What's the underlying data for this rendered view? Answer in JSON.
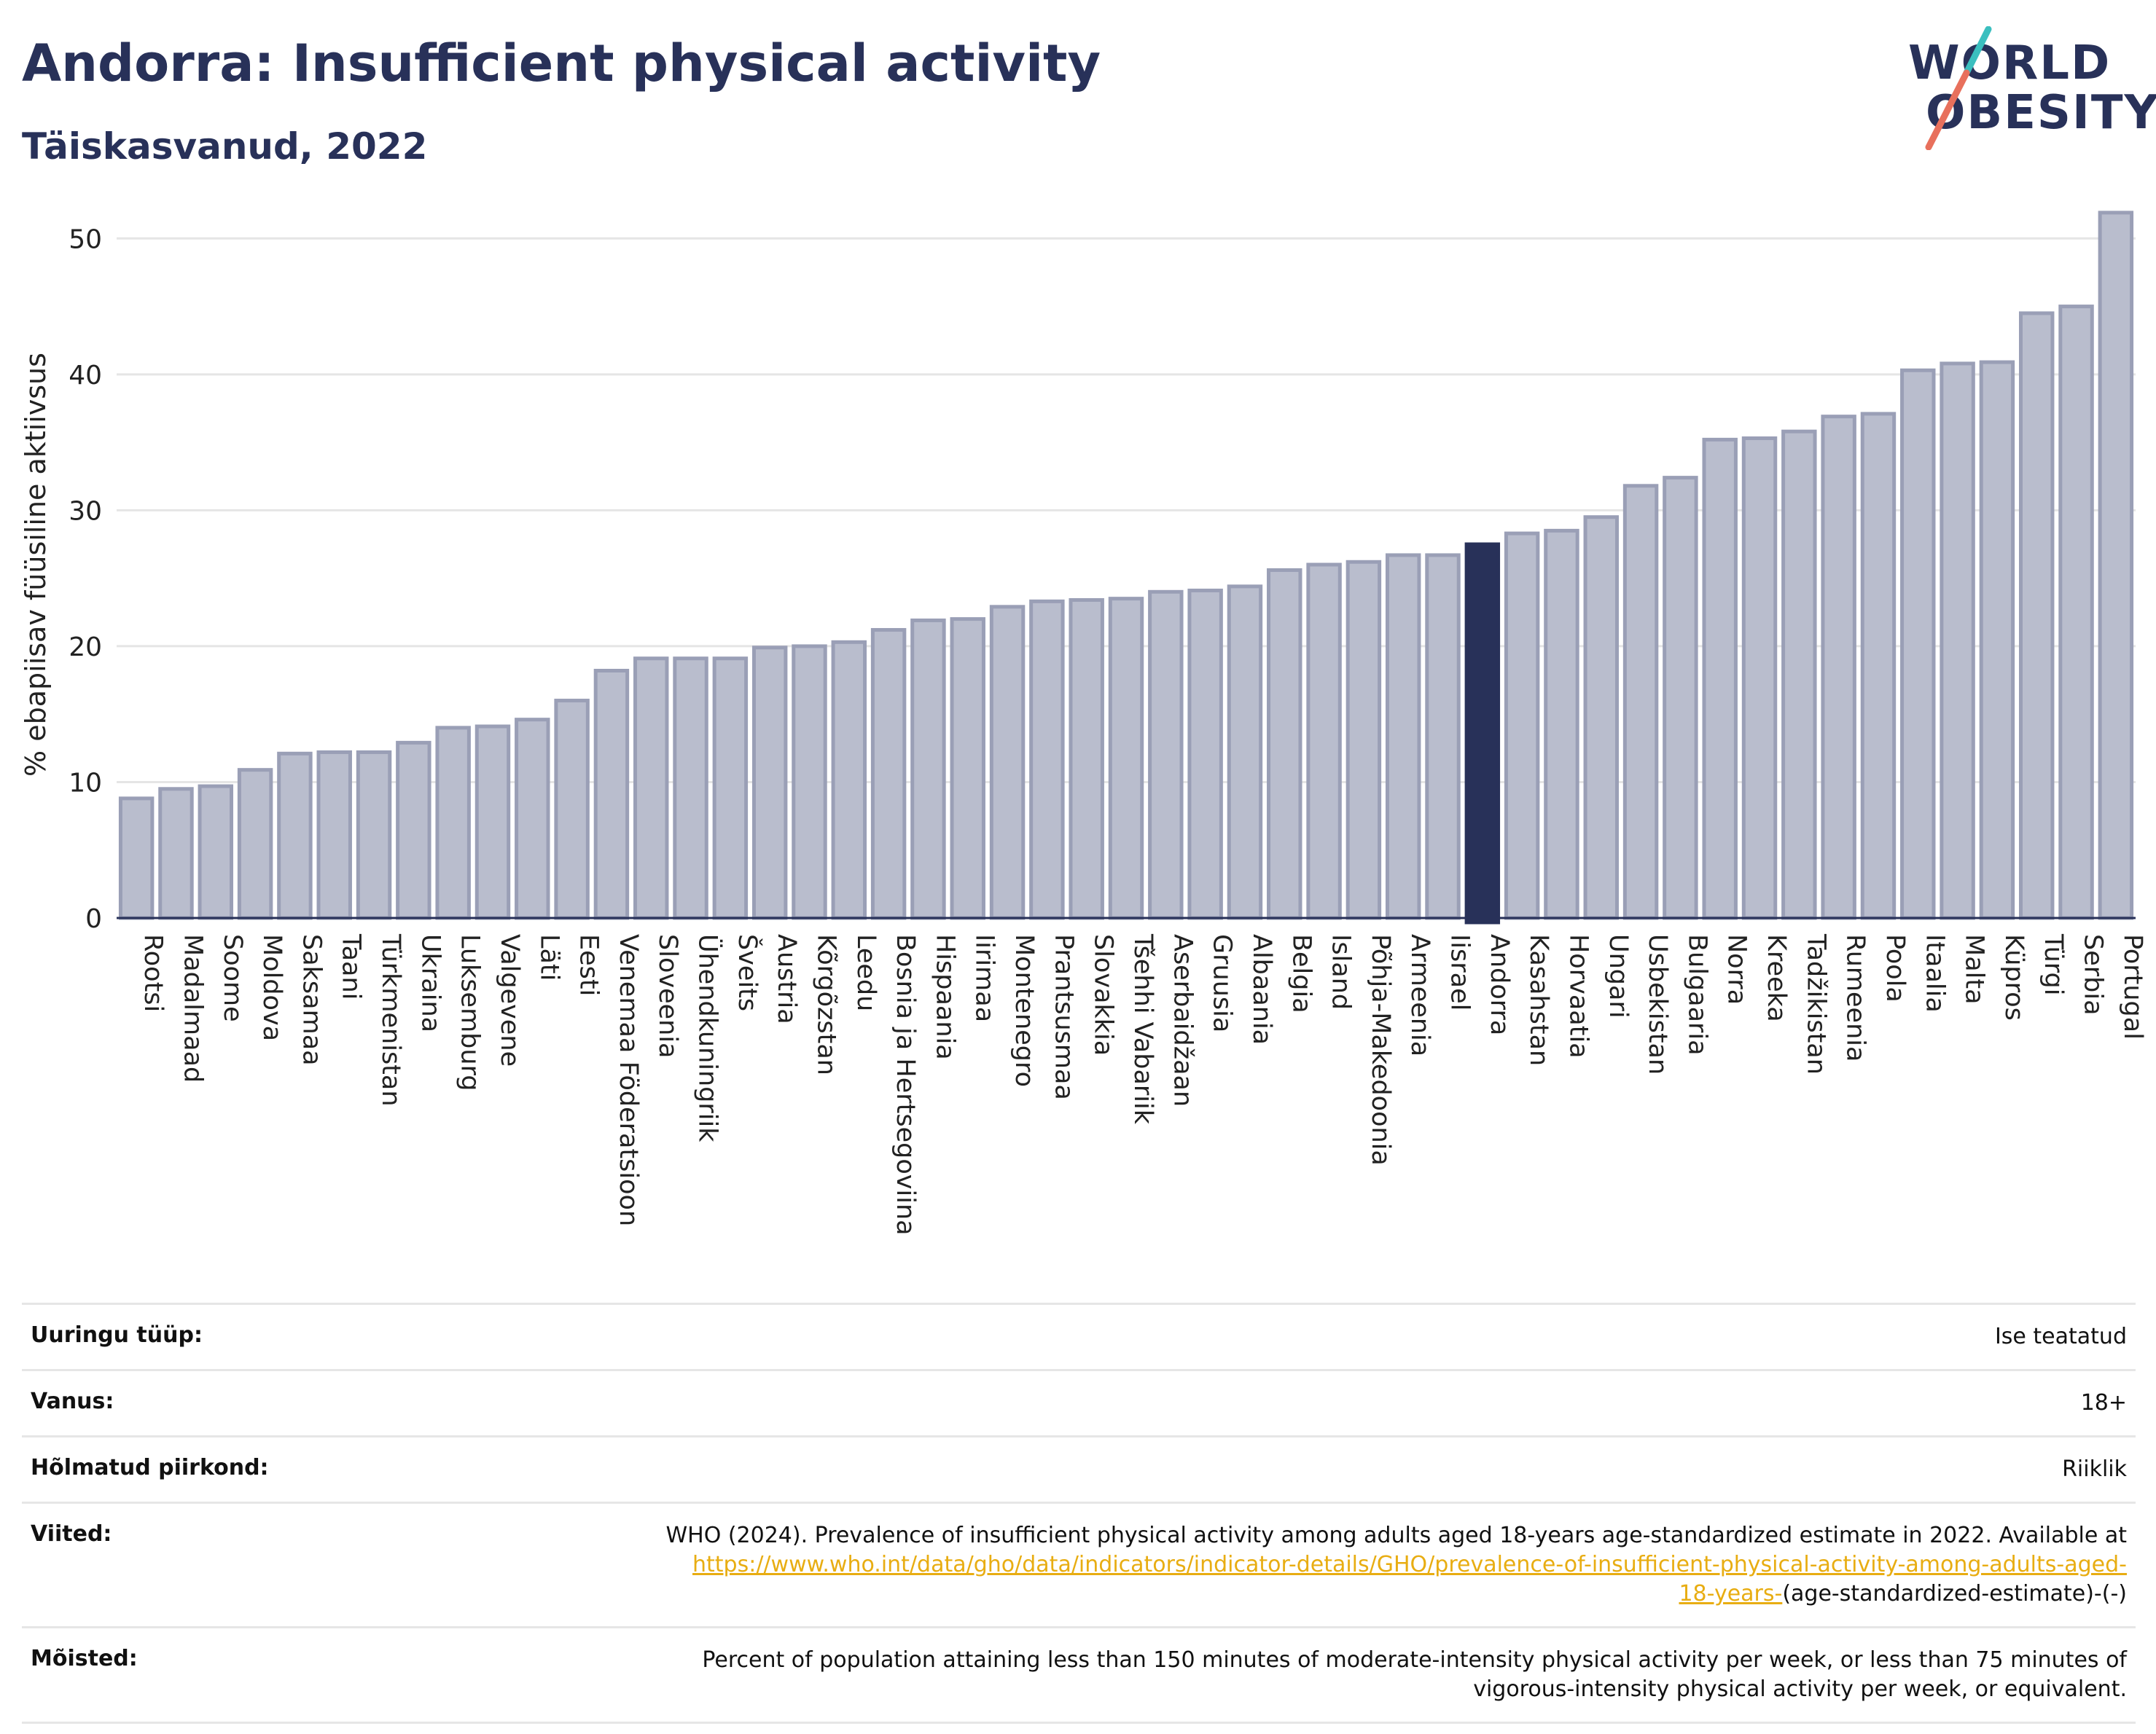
{
  "header": {
    "title": "Andorra: Insufficient physical activity",
    "subtitle": "Täiskasvanud, 2022"
  },
  "logo": {
    "line1": "WORLD",
    "line2": "OBESITY"
  },
  "colors": {
    "brand": "#283159",
    "highlight_bar": "#283159",
    "bar_fill": "#b9bdcd",
    "bar_stroke": "#9a9fb6",
    "logo_slash_teal": "#3bbfbf",
    "logo_slash_coral": "#e8705c",
    "link": "#e8ad12"
  },
  "chart_data": {
    "type": "bar",
    "ylabel": "% ebapiisav füüsiline aktiivsus",
    "xlabel": "",
    "ylim": [
      0,
      52
    ],
    "yticks": [
      0,
      10,
      20,
      30,
      40,
      50
    ],
    "grid": true,
    "highlight": "Andorra",
    "categories": [
      "Rootsi",
      "Madalmaad",
      "Soome",
      "Moldova",
      "Saksamaa",
      "Taani",
      "Türkmenistan",
      "Ukraina",
      "Luksemburg",
      "Valgevene",
      "Läti",
      "Eesti",
      "Venemaa Föderatsioon",
      "Sloveenia",
      "Ühendkuningriik",
      "Šveits",
      "Austria",
      "Kõrgõzstan",
      "Leedu",
      "Bosnia ja Hertsegoviina",
      "Hispaania",
      "Iirimaa",
      "Montenegro",
      "Prantsusmaa",
      "Slovakkia",
      "Tšehhi Vabariik",
      "Aserbaidžaan",
      "Gruusia",
      "Albaania",
      "Belgia",
      "Island",
      "Põhja-Makedoonia",
      "Armeenia",
      "Iisrael",
      "Andorra",
      "Kasahstan",
      "Horvaatia",
      "Ungari",
      "Usbekistan",
      "Bulgaaria",
      "Norra",
      "Kreeka",
      "Tadžikistan",
      "Rumeenia",
      "Poola",
      "Itaalia",
      "Malta",
      "Küpros",
      "Türgi",
      "Serbia",
      "Portugal"
    ],
    "values": [
      8.8,
      9.5,
      9.7,
      10.9,
      12.1,
      12.2,
      12.2,
      12.9,
      14.0,
      14.1,
      14.6,
      16.0,
      18.2,
      19.1,
      19.1,
      19.1,
      19.9,
      20.0,
      20.3,
      21.2,
      21.9,
      22.0,
      22.9,
      23.3,
      23.4,
      23.5,
      24.0,
      24.1,
      24.4,
      25.6,
      26.0,
      26.2,
      26.7,
      26.7,
      27.5,
      28.3,
      28.5,
      29.5,
      31.8,
      32.4,
      35.2,
      35.3,
      35.8,
      36.9,
      37.1,
      40.3,
      40.8,
      40.9,
      44.5,
      45.0,
      51.9
    ]
  },
  "meta": {
    "survey_type": {
      "label": "Uuringu tüüp:",
      "value": "Ise teatatud"
    },
    "age": {
      "label": "Vanus:",
      "value": "18+"
    },
    "region": {
      "label": "Hõlmatud piirkond:",
      "value": "Riiklik"
    },
    "references": {
      "label": "Viited:",
      "text": "WHO (2024). Prevalence of insufficient physical activity among adults aged 18-years age-standardized estimate in 2022. Available at",
      "link_line1": "https://www.who.int/data/gho/data/indicators/indicator-details/GHO/prevalence-of-insufficient-physical-activity-among-adults-aged-",
      "link_line2": "18-years-",
      "suffix": "(age-standardized-estimate)-(-)"
    },
    "definitions": {
      "label": "Mõisted:",
      "line1": "Percent of population attaining less than 150 minutes of moderate-intensity physical activity per week, or less than 75 minutes of",
      "line2": "vigorous-intensity physical activity per week, or equivalent."
    }
  }
}
